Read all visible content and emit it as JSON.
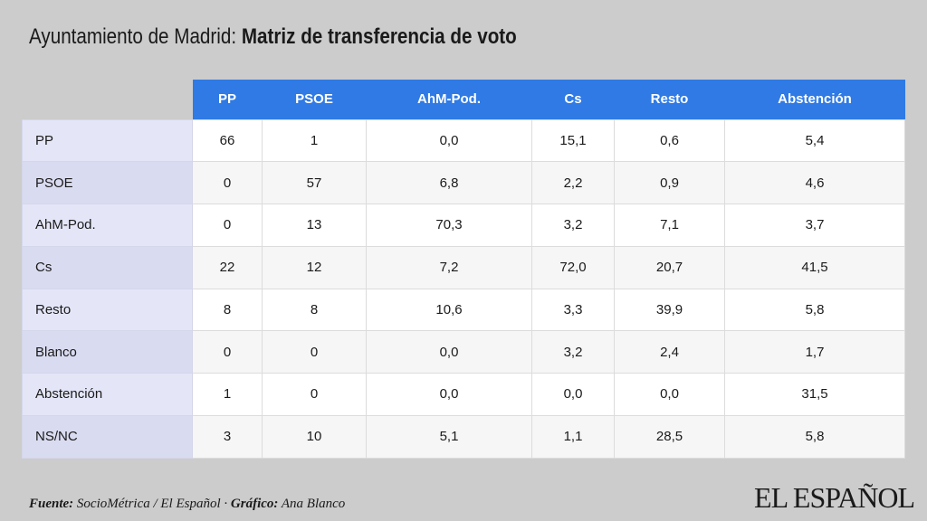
{
  "title": {
    "prefix": "Ayuntamiento de Madrid:",
    "main": "Matriz de transferencia de voto"
  },
  "chart_data": {
    "type": "table",
    "title": "Ayuntamiento de Madrid: Matriz de transferencia de voto",
    "columns": [
      "PP",
      "PSOE",
      "AhM-Pod.",
      "Cs",
      "Resto",
      "Abstención"
    ],
    "rows": [
      {
        "label": "PP",
        "values": [
          "66",
          "1",
          "0,0",
          "15,1",
          "0,6",
          "5,4"
        ]
      },
      {
        "label": "PSOE",
        "values": [
          "0",
          "57",
          "6,8",
          "2,2",
          "0,9",
          "4,6"
        ]
      },
      {
        "label": "AhM-Pod.",
        "values": [
          "0",
          "13",
          "70,3",
          "3,2",
          "7,1",
          "3,7"
        ]
      },
      {
        "label": "Cs",
        "values": [
          "22",
          "12",
          "7,2",
          "72,0",
          "20,7",
          "41,5"
        ]
      },
      {
        "label": "Resto",
        "values": [
          "8",
          "8",
          "10,6",
          "3,3",
          "39,9",
          "5,8"
        ]
      },
      {
        "label": "Blanco",
        "values": [
          "0",
          "0",
          "0,0",
          "3,2",
          "2,4",
          "1,7"
        ]
      },
      {
        "label": "Abstención",
        "values": [
          "1",
          "0",
          "0,0",
          "0,0",
          "0,0",
          "31,5"
        ]
      },
      {
        "label": "NS/NC",
        "values": [
          "3",
          "10",
          "5,1",
          "1,1",
          "28,5",
          "5,8"
        ]
      }
    ]
  },
  "footer": {
    "source_label": "Fuente:",
    "source_text": "SocioMétrica / El Español ·",
    "credit_label": "Gráfico:",
    "credit_text": "Ana Blanco"
  },
  "logo": "EL ESPAÑOL",
  "colors": {
    "header_blue": "#2f7ae5",
    "background": "#cccccc",
    "row_label_bg": "#e4e6f8"
  }
}
